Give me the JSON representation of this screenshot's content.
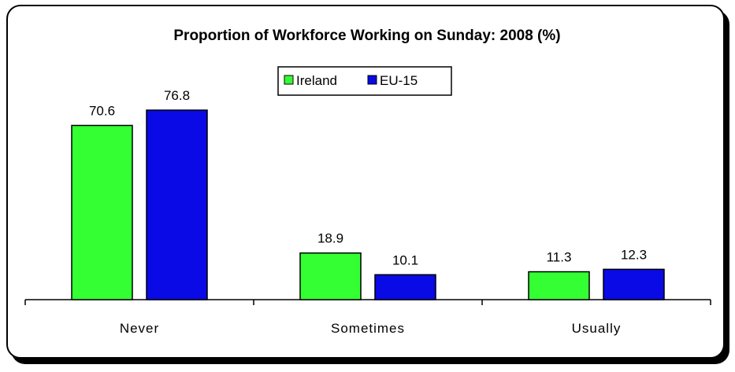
{
  "chart_data": {
    "type": "bar",
    "title": "Proportion of Workforce Working on Sunday: 2008 (%)",
    "categories": [
      "Never",
      "Sometimes",
      "Usually"
    ],
    "series": [
      {
        "name": "Ireland",
        "color": "#33ff33",
        "values": [
          70.6,
          18.9,
          11.3
        ]
      },
      {
        "name": "EU-15",
        "color": "#0a0ae6",
        "values": [
          76.8,
          10.1,
          12.3
        ]
      }
    ],
    "value_labels": {
      "Ireland": [
        "70.6",
        "18.9",
        "11.3"
      ],
      "EU-15": [
        "76.8",
        "10.1",
        "12.3"
      ]
    },
    "xlabel": "",
    "ylabel": "",
    "ylim": [
      0,
      80
    ],
    "grid": false,
    "legend_position": "top-center"
  }
}
